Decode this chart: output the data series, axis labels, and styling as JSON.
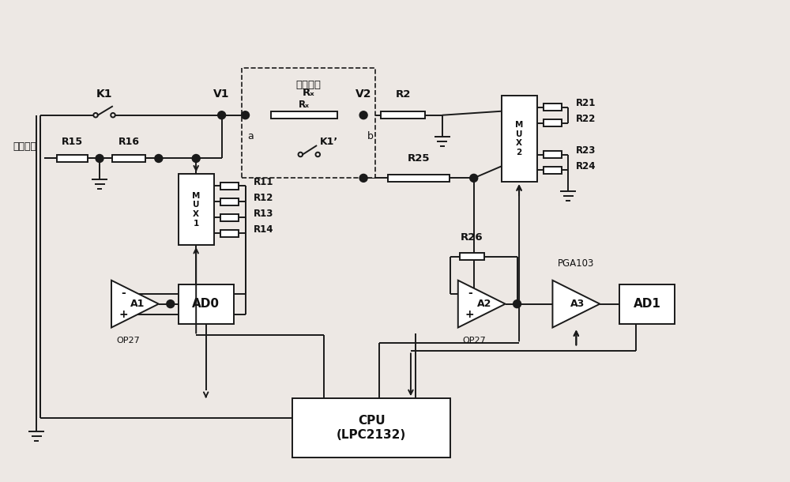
{
  "bg_color": "#ede8e4",
  "line_color": "#1a1a1a",
  "text_color": "#111111",
  "fig_width": 10.0,
  "fig_height": 6.1,
  "labels": {
    "dc_high_voltage": "直流高压",
    "insulation_resistor": "绣缘电阴",
    "K1": "K1",
    "K1_prime": "K1’",
    "V1": "V1",
    "V2": "V2",
    "a": "a",
    "b": "b",
    "R2": "R2",
    "R15": "R15",
    "R16": "R16",
    "R25": "R25",
    "Rx": "Rₓ",
    "R11": "R11",
    "R12": "R12",
    "R13": "R13",
    "R14": "R14",
    "R21": "R21",
    "R22": "R22",
    "R23": "R23",
    "R24": "R24",
    "R26": "R26",
    "A1": "A1",
    "A2": "A2",
    "A3": "A3",
    "OP27_1": "OP27",
    "OP27_2": "OP27",
    "PGA103": "PGA103",
    "AD0": "AD0",
    "AD1": "AD1",
    "CPU": "CPU\n(LPC2132)"
  }
}
